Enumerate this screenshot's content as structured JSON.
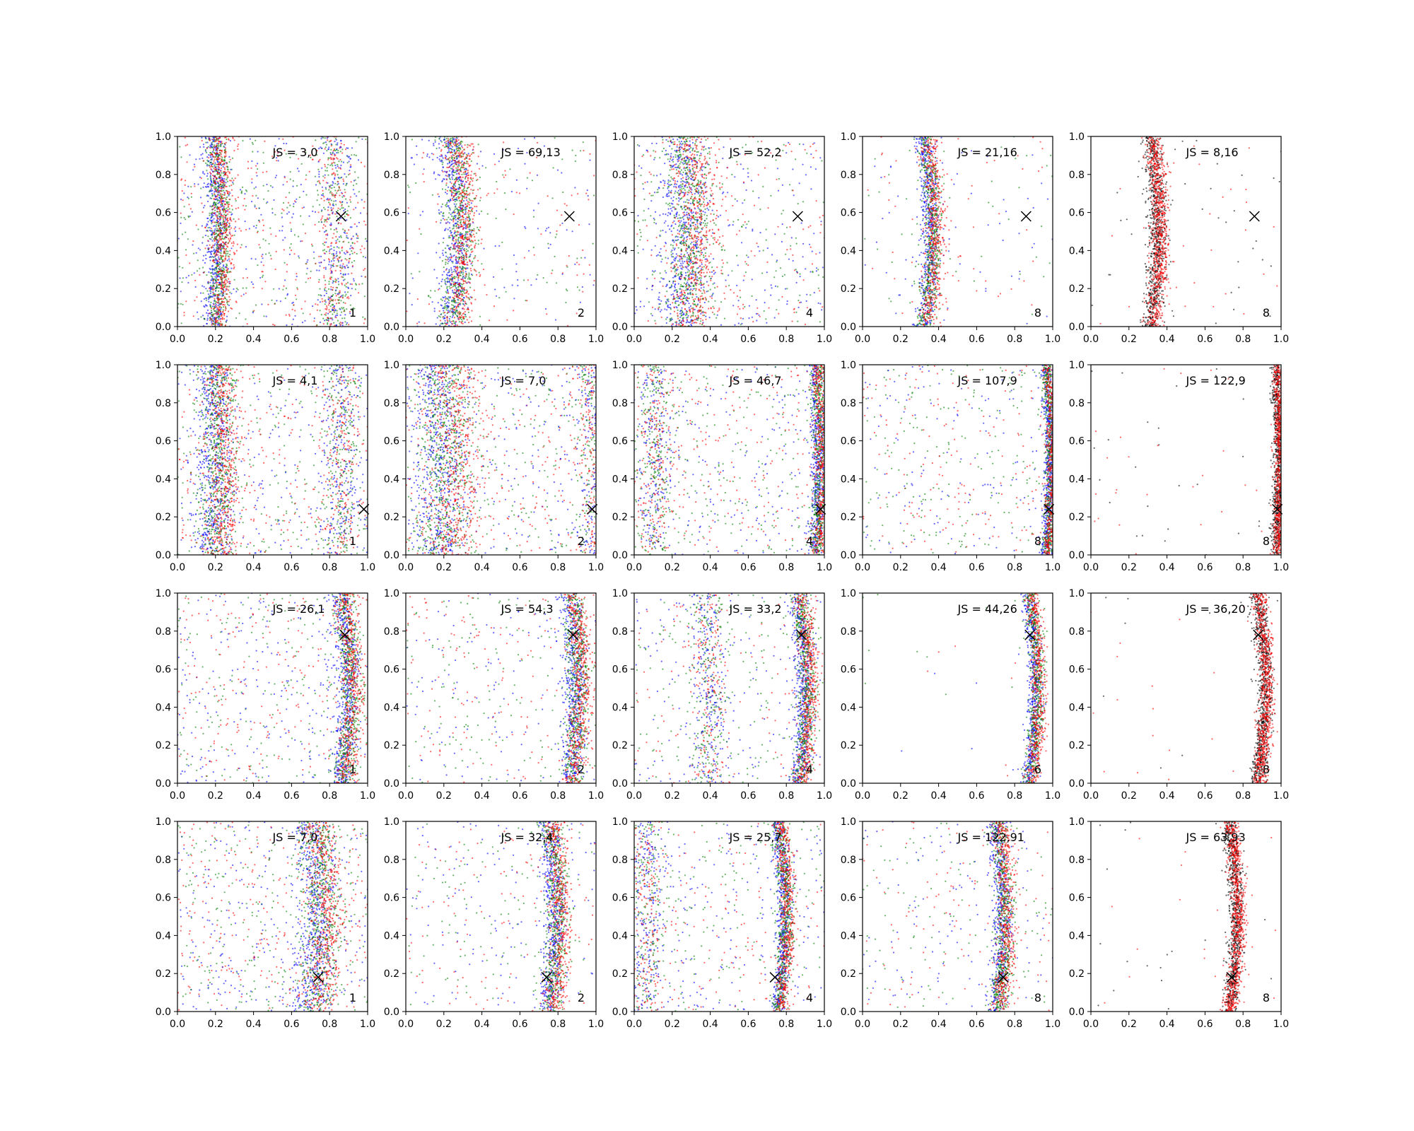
{
  "chart_data": {
    "type": "scatter",
    "layout": {
      "rows": 4,
      "cols": 5
    },
    "xlim": [
      0,
      1
    ],
    "ylim": [
      0,
      1
    ],
    "ticks": [
      "0.0",
      "0.2",
      "0.4",
      "0.6",
      "0.8",
      "1.0"
    ],
    "tick_values": [
      0,
      0.2,
      0.4,
      0.6,
      0.8,
      1.0
    ],
    "series_colors": {
      "blue": "#0000ff",
      "green": "#008000",
      "red": "#ff0000",
      "black": "#000000"
    },
    "panels": [
      {
        "js": "JS = 3,0",
        "k": "1",
        "curve_x": 0.2,
        "amp": 0.025,
        "spread": 0.03,
        "bg": 0.5,
        "marker": [
          0.86,
          0.58
        ],
        "colors": [
          "blue",
          "green",
          "red"
        ],
        "extra_band_x": 0.82
      },
      {
        "js": "JS = 69,13",
        "k": "2",
        "curve_x": 0.24,
        "amp": 0.05,
        "spread": 0.04,
        "bg": 0.2,
        "marker": [
          0.86,
          0.58
        ],
        "colors": [
          "blue",
          "green",
          "red"
        ]
      },
      {
        "js": "JS = 52,2",
        "k": "4",
        "curve_x": 0.27,
        "amp": 0.03,
        "spread": 0.06,
        "bg": 0.4,
        "marker": [
          0.86,
          0.58
        ],
        "colors": [
          "blue",
          "green",
          "red"
        ]
      },
      {
        "js": "JS = 21,16",
        "k": "8",
        "curve_x": 0.33,
        "amp": 0.04,
        "spread": 0.025,
        "bg": 0.12,
        "marker": [
          0.86,
          0.58
        ],
        "colors": [
          "blue",
          "green",
          "red"
        ]
      },
      {
        "js": "JS = 8,16",
        "k": "8",
        "curve_x": 0.32,
        "amp": 0.04,
        "spread": 0.025,
        "bg": 0.05,
        "marker": [
          0.86,
          0.58
        ],
        "colors": [
          "black",
          "red"
        ]
      },
      {
        "js": "JS = 4,1",
        "k": "1",
        "curve_x": 0.2,
        "amp": 0.02,
        "spread": 0.05,
        "bg": 0.5,
        "marker": [
          0.98,
          0.24
        ],
        "colors": [
          "blue",
          "green",
          "red"
        ],
        "extra_band_x": 0.85
      },
      {
        "js": "JS = 7,0",
        "k": "2",
        "curve_x": 0.2,
        "amp": 0.02,
        "spread": 0.08,
        "bg": 0.5,
        "marker": [
          0.98,
          0.24
        ],
        "colors": [
          "blue",
          "green",
          "red"
        ],
        "extra_band_x": 0.98
      },
      {
        "js": "JS = 46,7",
        "k": "4",
        "curve_x": 0.96,
        "amp": 0.02,
        "spread": 0.02,
        "bg": 0.45,
        "marker": [
          0.98,
          0.24
        ],
        "colors": [
          "blue",
          "green",
          "red"
        ],
        "extra_band_x": 0.1
      },
      {
        "js": "JS = 107,9",
        "k": "8",
        "curve_x": 0.97,
        "amp": 0.02,
        "spread": 0.015,
        "bg": 0.35,
        "marker": [
          0.98,
          0.24
        ],
        "colors": [
          "blue",
          "green",
          "red"
        ]
      },
      {
        "js": "JS = 122,9",
        "k": "8",
        "curve_x": 0.98,
        "amp": 0.01,
        "spread": 0.015,
        "bg": 0.04,
        "marker": [
          0.98,
          0.24
        ],
        "colors": [
          "black",
          "red"
        ]
      },
      {
        "js": "JS = 26,1",
        "k": "1",
        "curve_x": 0.87,
        "amp": 0.04,
        "spread": 0.03,
        "bg": 0.45,
        "marker": [
          0.88,
          0.78
        ],
        "colors": [
          "blue",
          "green",
          "red"
        ]
      },
      {
        "js": "JS = 54,3",
        "k": "2",
        "curve_x": 0.87,
        "amp": 0.04,
        "spread": 0.03,
        "bg": 0.3,
        "marker": [
          0.88,
          0.78
        ],
        "colors": [
          "blue",
          "green",
          "red"
        ]
      },
      {
        "js": "JS = 33,2",
        "k": "4",
        "curve_x": 0.87,
        "amp": 0.04,
        "spread": 0.025,
        "bg": 0.3,
        "marker": [
          0.88,
          0.78
        ],
        "colors": [
          "blue",
          "green",
          "red"
        ],
        "extra_band_x": 0.38
      },
      {
        "js": "JS = 44,26",
        "k": "6",
        "curve_x": 0.88,
        "amp": 0.04,
        "spread": 0.02,
        "bg": 0.02,
        "marker": [
          0.88,
          0.78
        ],
        "colors": [
          "blue",
          "green",
          "red"
        ]
      },
      {
        "js": "JS = 36,20",
        "k": "8",
        "curve_x": 0.88,
        "amp": 0.04,
        "spread": 0.02,
        "bg": 0.02,
        "marker": [
          0.88,
          0.78
        ],
        "colors": [
          "black",
          "red"
        ]
      },
      {
        "js": "JS = 7,0",
        "k": "1",
        "curve_x": 0.72,
        "amp": 0.04,
        "spread": 0.05,
        "bg": 0.55,
        "marker": [
          0.74,
          0.18
        ],
        "colors": [
          "blue",
          "green",
          "red"
        ]
      },
      {
        "js": "JS = 32,4",
        "k": "2",
        "curve_x": 0.76,
        "amp": 0.04,
        "spread": 0.03,
        "bg": 0.25,
        "marker": [
          0.74,
          0.18
        ],
        "colors": [
          "blue",
          "green",
          "red"
        ]
      },
      {
        "js": "JS = 25,7",
        "k": "4",
        "curve_x": 0.76,
        "amp": 0.04,
        "spread": 0.02,
        "bg": 0.35,
        "marker": [
          0.74,
          0.18
        ],
        "colors": [
          "blue",
          "green",
          "red"
        ],
        "extra_band_x": 0.05
      },
      {
        "js": "JS = 122,91",
        "k": "8",
        "curve_x": 0.71,
        "amp": 0.04,
        "spread": 0.025,
        "bg": 0.25,
        "marker": [
          0.74,
          0.18
        ],
        "colors": [
          "blue",
          "green",
          "red"
        ]
      },
      {
        "js": "JS = 63,93",
        "k": "8",
        "curve_x": 0.73,
        "amp": 0.04,
        "spread": 0.02,
        "bg": 0.03,
        "marker": [
          0.74,
          0.18
        ],
        "colors": [
          "black",
          "red"
        ]
      }
    ]
  }
}
